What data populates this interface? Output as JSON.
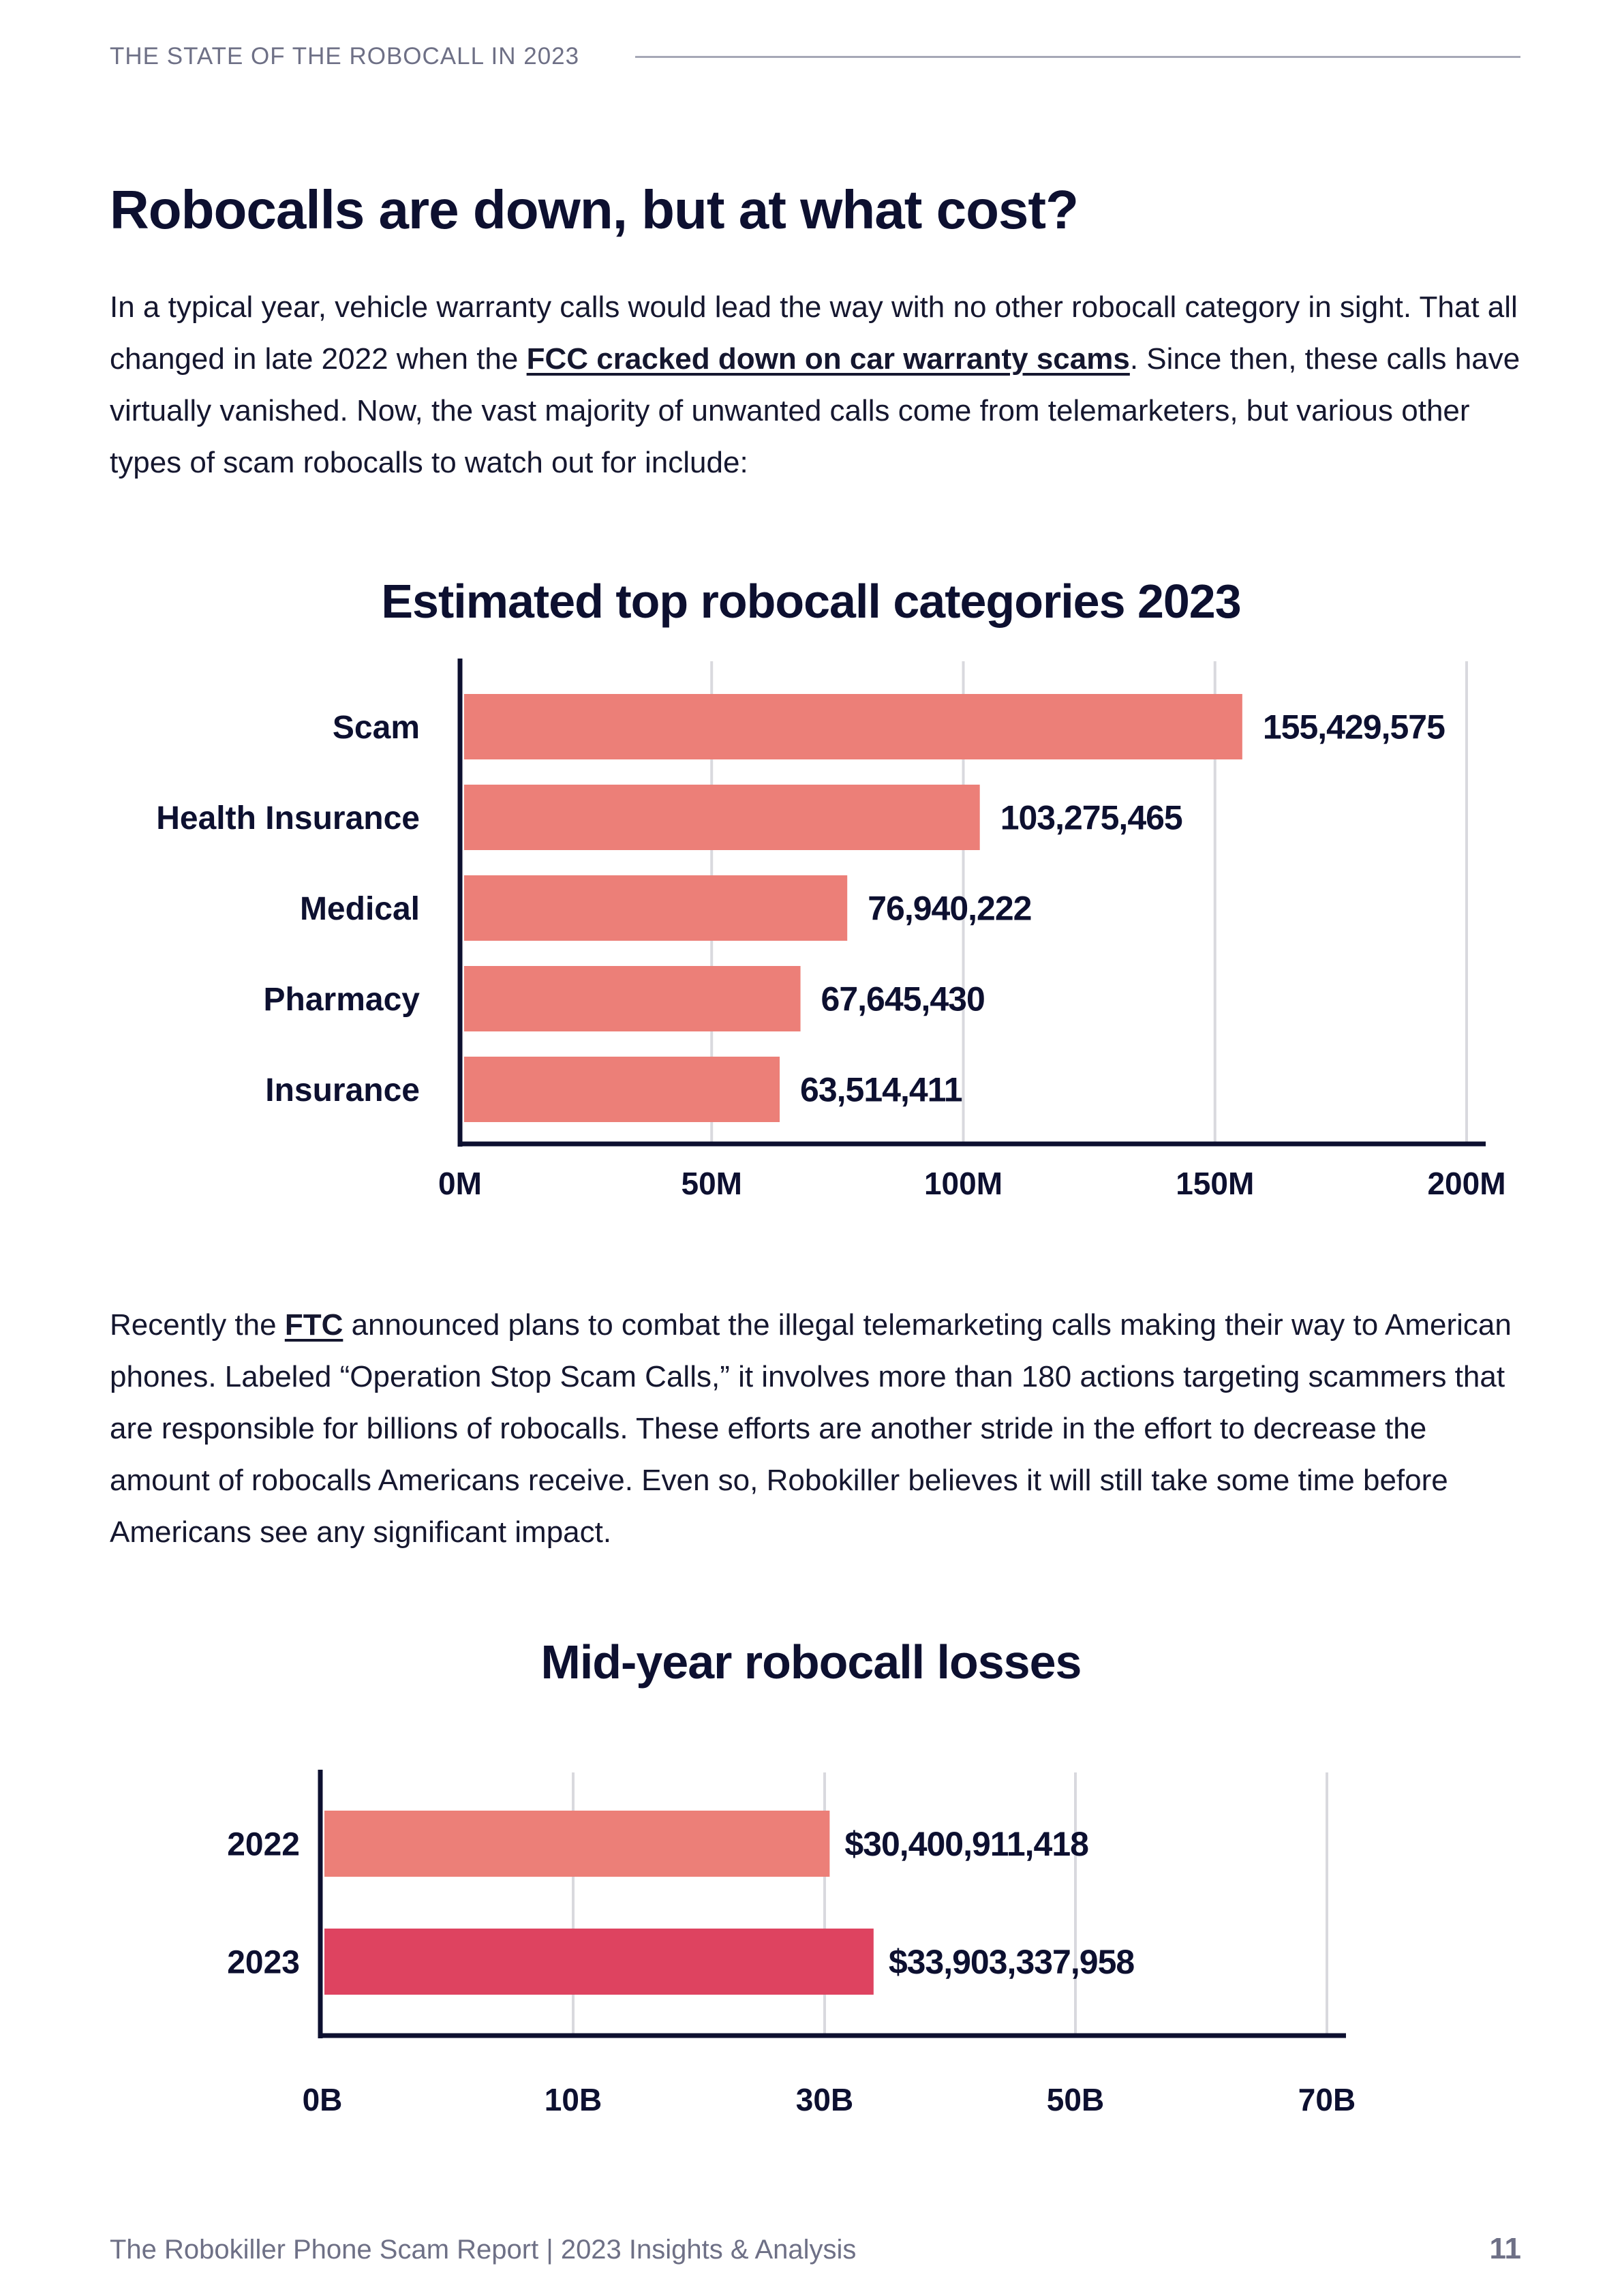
{
  "header": {
    "label": "THE STATE OF THE ROBOCALL IN 2023"
  },
  "title": "Robocalls are down, but at what cost?",
  "para1": {
    "before": "In a typical year, vehicle warranty calls would lead the way with no other robocall category in sight. That all changed in late 2022 when the ",
    "link": "FCC cracked down on car warranty scams",
    "after": ". Since then, these calls have virtually vanished. Now, the vast majority of unwanted calls come from telemarketers, but various other types of scam robocalls to watch out for include:"
  },
  "para2": {
    "before": "Recently the ",
    "link": "FTC",
    "after": " announced plans to combat the illegal telemarketing calls making their way to American phones. Labeled “Operation Stop Scam Calls,” it involves more than 180 actions targeting scammers that are responsible for billions of robocalls. These efforts are another stride in the effort to decrease the amount of robocalls Americans receive. Even so, Robokiller believes it will still take some time before Americans see any significant impact."
  },
  "chart_data": [
    {
      "type": "bar",
      "orientation": "horizontal",
      "title": "Estimated top robocall categories 2023",
      "categories": [
        "Scam",
        "Health Insurance",
        "Medical",
        "Pharmacy",
        "Insurance"
      ],
      "values": [
        155429575,
        103275465,
        76940222,
        67645430,
        63514411
      ],
      "value_labels": [
        "155,429,575",
        "103,275,465",
        "76,940,222",
        "67,645,430",
        "63,514,411"
      ],
      "xticks": [
        0,
        50000000,
        100000000,
        150000000,
        200000000
      ],
      "xtick_labels": [
        "0M",
        "50M",
        "100M",
        "150M",
        "200M"
      ],
      "xlim": [
        0,
        200000000
      ],
      "colors": [
        "#ec7f78",
        "#ec7f78",
        "#ec7f78",
        "#ec7f78",
        "#ec7f78"
      ],
      "grid": true
    },
    {
      "type": "bar",
      "orientation": "horizontal",
      "title": "Mid-year robocall losses",
      "categories": [
        "2022",
        "2023"
      ],
      "values": [
        30400911418,
        33903337958
      ],
      "value_labels": [
        "$30,400,911,418",
        "$33,903,337,958"
      ],
      "xticks": [
        0,
        10000000000,
        30000000000,
        50000000000,
        70000000000
      ],
      "xtick_labels": [
        "0B",
        "10B",
        "30B",
        "50B",
        "70B"
      ],
      "xlim": [
        0,
        70000000000
      ],
      "colors": [
        "#ec7f78",
        "#de4360"
      ],
      "grid": true
    }
  ],
  "footer": {
    "text": "The Robokiller Phone Scam Report | 2023 Insights & Analysis",
    "page": "11"
  }
}
